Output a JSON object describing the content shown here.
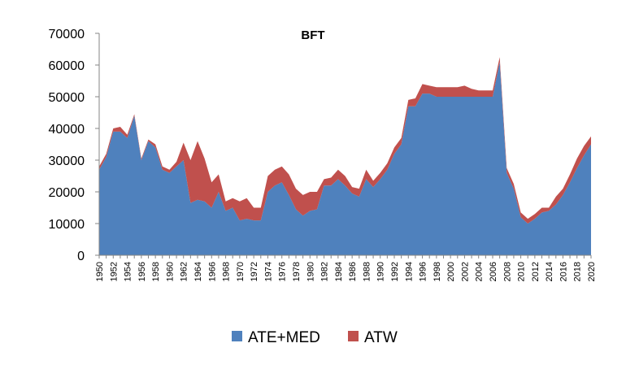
{
  "chart_data": {
    "type": "area",
    "stacked": true,
    "title": "BFT",
    "xlabel": "",
    "ylabel": "",
    "ylim": [
      0,
      70000
    ],
    "yticks": [
      0,
      10000,
      20000,
      30000,
      40000,
      50000,
      60000,
      70000
    ],
    "xlim": [
      1950,
      2020
    ],
    "xticks": [
      1950,
      1952,
      1954,
      1956,
      1958,
      1960,
      1962,
      1964,
      1966,
      1968,
      1970,
      1972,
      1974,
      1976,
      1978,
      1980,
      1982,
      1984,
      1986,
      1988,
      1990,
      1992,
      1994,
      1996,
      1998,
      2000,
      2002,
      2004,
      2006,
      2008,
      2010,
      2012,
      2014,
      2016,
      2018,
      2020
    ],
    "grid": false,
    "legend_position": "bottom",
    "x": [
      1950,
      1951,
      1952,
      1953,
      1954,
      1955,
      1956,
      1957,
      1958,
      1959,
      1960,
      1961,
      1962,
      1963,
      1964,
      1965,
      1966,
      1967,
      1968,
      1969,
      1970,
      1971,
      1972,
      1973,
      1974,
      1975,
      1976,
      1977,
      1978,
      1979,
      1980,
      1981,
      1982,
      1983,
      1984,
      1985,
      1986,
      1987,
      1988,
      1989,
      1990,
      1991,
      1992,
      1993,
      1994,
      1995,
      1996,
      1997,
      1998,
      1999,
      2000,
      2001,
      2002,
      2003,
      2004,
      2005,
      2006,
      2007,
      2008,
      2009,
      2010,
      2011,
      2012,
      2013,
      2014,
      2015,
      2016,
      2017,
      2018,
      2019,
      2020
    ],
    "series": [
      {
        "name": "ATE+MED",
        "color": "#4f81bd",
        "values": [
          27000,
          31000,
          39000,
          39000,
          37000,
          44000,
          30000,
          36000,
          34000,
          27000,
          26000,
          28000,
          30000,
          16500,
          17500,
          17000,
          15000,
          20000,
          14000,
          15000,
          11000,
          11500,
          11000,
          11000,
          20000,
          22000,
          23000,
          19000,
          14500,
          12500,
          14000,
          14500,
          22000,
          22000,
          24000,
          22000,
          19500,
          18500,
          24000,
          21500,
          24000,
          27000,
          32000,
          35000,
          47000,
          47000,
          51000,
          51000,
          50000,
          50000,
          50000,
          50000,
          50000,
          50000,
          50000,
          50000,
          50000,
          61000,
          26000,
          21000,
          12000,
          10000,
          11500,
          13500,
          14000,
          16000,
          19000,
          23000,
          27500,
          31500,
          35000
        ]
      },
      {
        "name": "ATW",
        "color": "#c0504d",
        "values": [
          1000,
          1000,
          1000,
          1500,
          1000,
          500,
          500,
          500,
          1000,
          1000,
          1000,
          1500,
          5500,
          13500,
          18500,
          13500,
          8000,
          5500,
          3000,
          3000,
          6000,
          6500,
          4000,
          4000,
          5000,
          5000,
          5000,
          6500,
          6500,
          6500,
          6000,
          5500,
          2000,
          2500,
          3000,
          3000,
          2000,
          2500,
          3000,
          2000,
          2000,
          2000,
          2000,
          2000,
          2000,
          2500,
          3000,
          2500,
          3000,
          3000,
          3000,
          3000,
          3500,
          2500,
          2000,
          2000,
          2000,
          1500,
          1500,
          1500,
          1500,
          1500,
          1500,
          1500,
          1000,
          2500,
          2000,
          2500,
          3000,
          3000,
          2500
        ]
      }
    ]
  }
}
